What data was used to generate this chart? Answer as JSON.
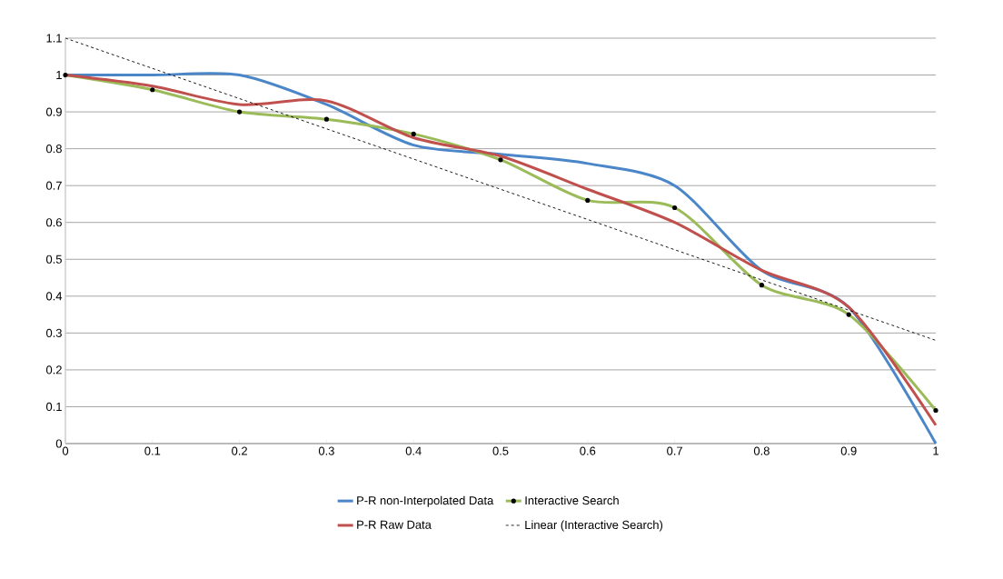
{
  "chart_data": {
    "type": "line",
    "x": [
      0,
      0.1,
      0.2,
      0.3,
      0.4,
      0.5,
      0.6,
      0.7,
      0.8,
      0.9,
      1
    ],
    "series": [
      {
        "name": "P-R non-Interpolated Data",
        "color": "#4a86c8",
        "values": [
          1,
          1,
          1,
          0.92,
          0.81,
          0.785,
          0.76,
          0.7,
          0.47,
          0.37,
          0
        ]
      },
      {
        "name": "Interactive Search",
        "color": "#9bbb59",
        "marker": "circle",
        "values": [
          1,
          0.96,
          0.9,
          0.88,
          0.84,
          0.77,
          0.66,
          0.64,
          0.43,
          0.35,
          0.09
        ]
      },
      {
        "name": "P-R Raw Data",
        "color": "#c0504d",
        "values": [
          1,
          0.97,
          0.92,
          0.93,
          0.83,
          0.78,
          0.69,
          0.6,
          0.47,
          0.37,
          0.05
        ]
      },
      {
        "name": "Linear (Interactive Search)",
        "color": "#000000",
        "line_style": "dashed",
        "x": [
          0,
          1
        ],
        "values": [
          1.1,
          0.28
        ]
      }
    ],
    "xlim": [
      0,
      1
    ],
    "ylim": [
      0,
      1.1
    ],
    "xticks": [
      0,
      0.1,
      0.2,
      0.3,
      0.4,
      0.5,
      0.6,
      0.7,
      0.8,
      0.9,
      1
    ],
    "yticks": [
      0,
      0.1,
      0.2,
      0.3,
      0.4,
      0.5,
      0.6,
      0.7,
      0.8,
      0.9,
      1,
      1.1
    ],
    "grid": "y",
    "legend": "bottom"
  }
}
